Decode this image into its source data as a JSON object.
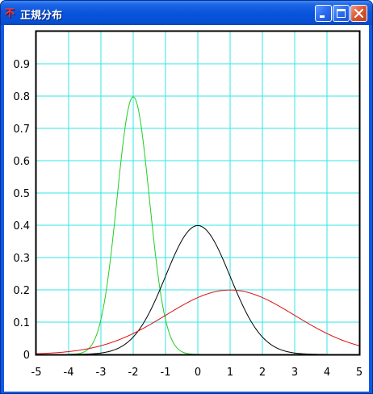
{
  "window": {
    "title": "正規分布",
    "app_icon_glyph": "不",
    "buttons": [
      {
        "name": "minimize-button",
        "icon": "minimize-icon"
      },
      {
        "name": "maximize-button",
        "icon": "maximize-icon"
      },
      {
        "name": "close-button",
        "icon": "close-icon"
      }
    ]
  },
  "colors": {
    "grid": "#33E6E6",
    "axis": "#000000",
    "series_green": "#22CC22",
    "series_black": "#000000",
    "series_red": "#DD1111"
  },
  "chart_data": {
    "type": "line",
    "xlim": [
      -5,
      5
    ],
    "ylim": [
      0,
      1.0
    ],
    "x_ticks": [
      -5,
      -4,
      -3,
      -2,
      -1,
      0,
      1,
      2,
      3,
      4,
      5
    ],
    "x_tick_labels": [
      "-5",
      "-4",
      "-3",
      "-2",
      "-1",
      "0",
      "1",
      "2",
      "3",
      "4",
      "5"
    ],
    "y_ticks": [
      0,
      0.1,
      0.2,
      0.3,
      0.4,
      0.5,
      0.6,
      0.7,
      0.8,
      0.9
    ],
    "y_tick_labels": [
      "0",
      "0.1",
      "0.2",
      "0.3",
      "0.4",
      "0.5",
      "0.6",
      "0.7",
      "0.8",
      "0.9"
    ],
    "grid": true,
    "series": [
      {
        "color": "#22CC22",
        "mean": -2,
        "sd": 0.5,
        "peak": 0.798
      },
      {
        "color": "#000000",
        "mean": 0,
        "sd": 1,
        "peak": 0.399
      },
      {
        "color": "#DD1111",
        "mean": 1,
        "sd": 2,
        "peak": 0.199
      }
    ]
  }
}
